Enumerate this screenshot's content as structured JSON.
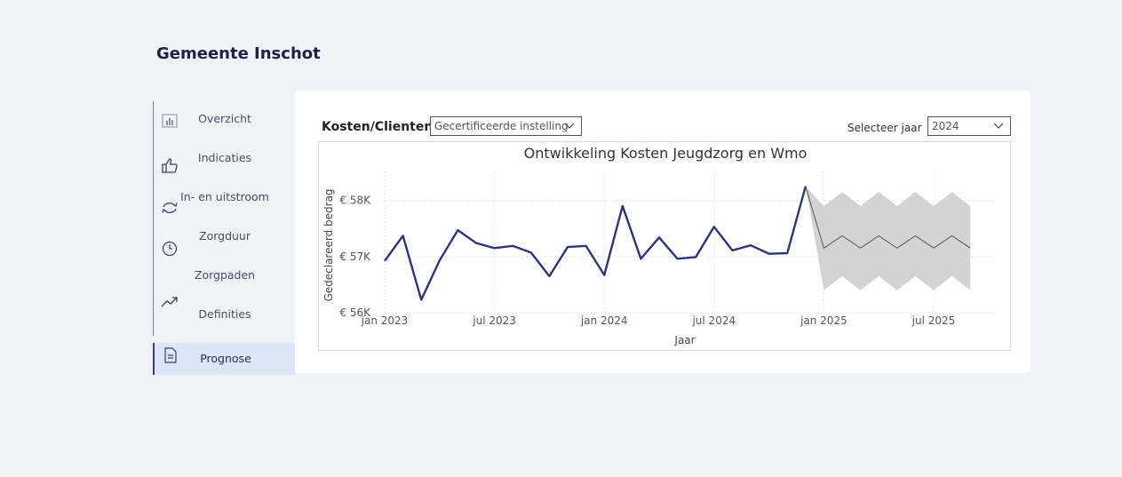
{
  "app": {
    "title": "Gemeente Inschot"
  },
  "nav": {
    "items": [
      {
        "label": "Overzicht",
        "icon": "bar-chart-icon"
      },
      {
        "label": "Indicaties",
        "icon": "thumbs-up-icon"
      },
      {
        "label": "In- en uitstroom",
        "icon": "refresh-icon"
      },
      {
        "label": "Zorgduur",
        "icon": "clock-icon"
      },
      {
        "label": "Zorgpaden",
        "icon": ""
      },
      {
        "label": "Definities",
        "icon": "trend-icon"
      },
      {
        "label": "Prognose",
        "icon": "document-icon",
        "active": true
      }
    ]
  },
  "filters": {
    "metric_label": "Kosten/Clienten",
    "category_value": "Gecertificeerde instelling",
    "year_label": "Selecteer jaar",
    "year_value": "2024"
  },
  "colors": {
    "line": "#2e3575",
    "forecast_band": "#d3d3d3",
    "forecast_line": "#555555",
    "active_nav": "#dde6f4"
  },
  "chart_data": {
    "type": "line",
    "title": "Ontwikkeling Kosten Jeugdzorg en Wmo",
    "xlabel": "Jaar",
    "ylabel": "Gedeclareerd bedrag",
    "ylim": [
      56000,
      58500
    ],
    "yticks": [
      56000,
      57000,
      58000
    ],
    "ytick_labels": [
      "€ 56K",
      "€ 57K",
      "€ 58K"
    ],
    "xticks": [
      "2023-01",
      "2023-07",
      "2024-01",
      "2024-07",
      "2025-01",
      "2025-07"
    ],
    "xtick_labels": [
      "jan 2023",
      "jul 2023",
      "jan 2024",
      "jul 2024",
      "jan 2025",
      "jul 2025"
    ],
    "grid": true,
    "series": [
      {
        "name": "",
        "x": [
          "2023-01",
          "2023-02",
          "2023-03",
          "2023-04",
          "2023-05",
          "2023-06",
          "2023-07",
          "2023-08",
          "2023-09",
          "2023-10",
          "2023-11",
          "2023-12",
          "2024-01",
          "2024-02",
          "2024-03",
          "2024-04",
          "2024-05",
          "2024-06",
          "2024-07",
          "2024-08",
          "2024-09",
          "2024-10",
          "2024-11",
          "2024-12"
        ],
        "values": [
          56920,
          57370,
          56230,
          56930,
          57470,
          57240,
          57150,
          57190,
          57070,
          56650,
          57170,
          57190,
          56670,
          57900,
          56960,
          57340,
          56960,
          56990,
          57530,
          57110,
          57200,
          57050,
          57060,
          58250
        ]
      }
    ],
    "forecast": {
      "x": [
        "2024-12",
        "2025-01",
        "2025-02",
        "2025-03",
        "2025-04",
        "2025-05",
        "2025-06",
        "2025-07",
        "2025-08",
        "2025-09"
      ],
      "values": [
        58250,
        57150,
        57370,
        57150,
        57370,
        57150,
        57370,
        57150,
        57370,
        57150
      ],
      "upper": [
        58250,
        57900,
        58150,
        57900,
        58150,
        57900,
        58150,
        57900,
        58150,
        57900
      ],
      "lower": [
        58250,
        56400,
        56650,
        56400,
        56650,
        56400,
        56650,
        56400,
        56650,
        56400
      ]
    }
  }
}
